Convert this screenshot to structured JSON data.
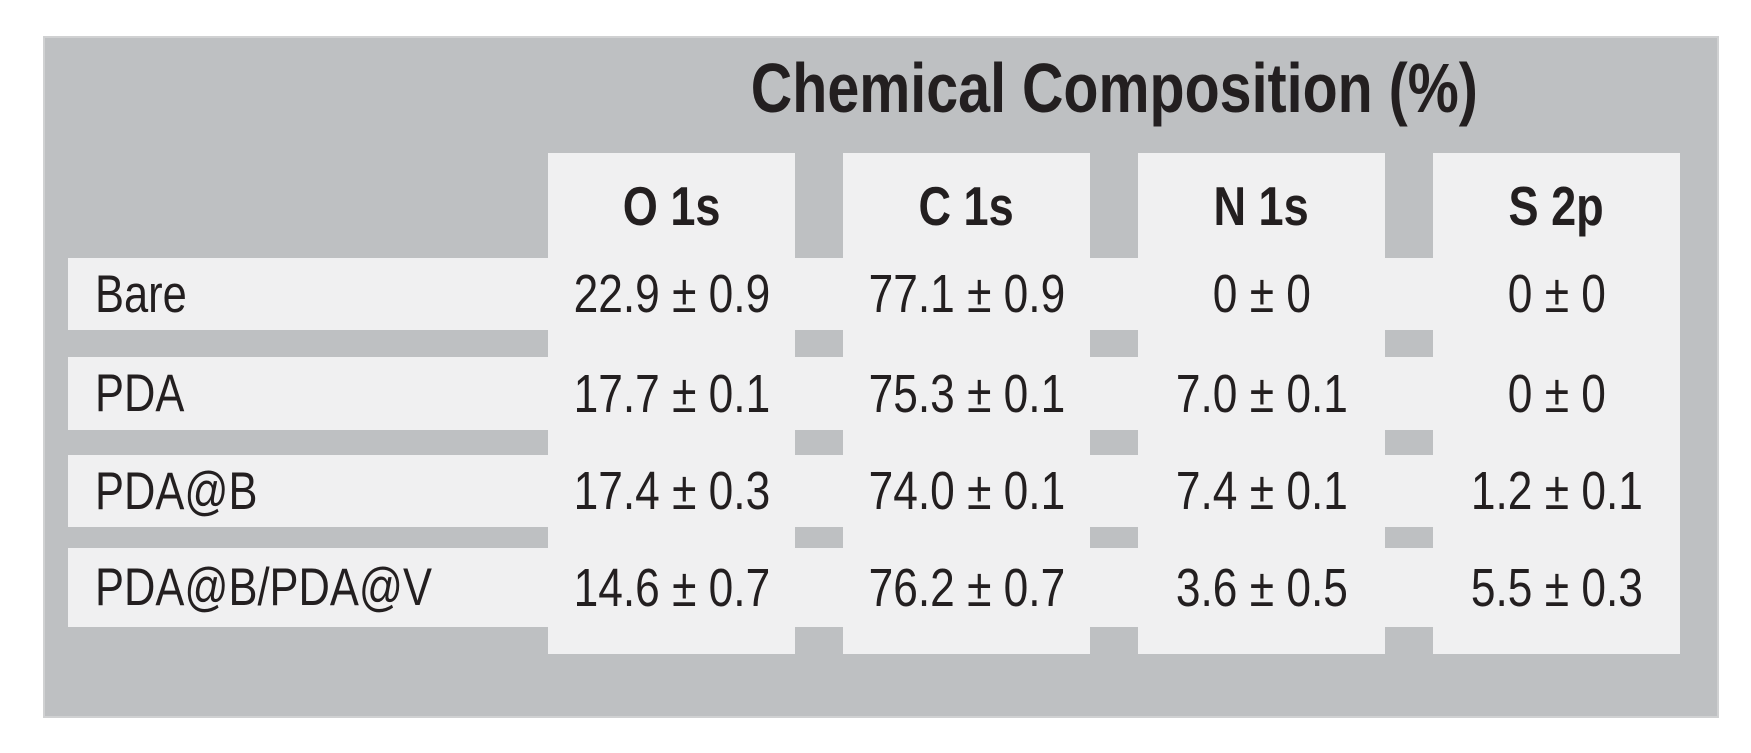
{
  "title": "Chemical Composition (%)",
  "columns": [
    "O 1s",
    "C 1s",
    "N 1s",
    "S 2p"
  ],
  "rows": [
    {
      "label": "Bare",
      "values": [
        "22.9 ± 0.9",
        "77.1 ± 0.9",
        "0 ± 0",
        "0 ± 0"
      ]
    },
    {
      "label": "PDA",
      "values": [
        "17.7 ± 0.1",
        "75.3 ± 0.1",
        "7.0 ± 0.1",
        "0 ± 0"
      ]
    },
    {
      "label": "PDA@B",
      "values": [
        "17.4 ± 0.3",
        "74.0 ± 0.1",
        "7.4 ± 0.1",
        "1.2 ± 0.1"
      ]
    },
    {
      "label": "PDA@B/PDA@V",
      "values": [
        "14.6 ± 0.7",
        "76.2 ± 0.7",
        "3.6 ± 0.5",
        "5.5 ± 0.3"
      ]
    }
  ],
  "colors": {
    "background": "#ffffff",
    "panel": "#bec0c2",
    "cell": "#f0f0f1",
    "text": "#231f20"
  },
  "chart_data": {
    "type": "table",
    "title": "Chemical Composition (%)",
    "unit": "%",
    "columns": [
      "O 1s",
      "C 1s",
      "N 1s",
      "S 2p"
    ],
    "row_labels": [
      "Bare",
      "PDA",
      "PDA@B",
      "PDA@B/PDA@V"
    ],
    "values": [
      [
        22.9,
        77.1,
        0.0,
        0.0
      ],
      [
        17.7,
        75.3,
        7.0,
        0.0
      ],
      [
        17.4,
        74.0,
        7.4,
        1.2
      ],
      [
        14.6,
        76.2,
        3.6,
        5.5
      ]
    ],
    "uncertainties": [
      [
        0.9,
        0.9,
        0.0,
        0.0
      ],
      [
        0.1,
        0.1,
        0.1,
        0.0
      ],
      [
        0.3,
        0.1,
        0.1,
        0.1
      ],
      [
        0.7,
        0.7,
        0.5,
        0.3
      ]
    ]
  }
}
